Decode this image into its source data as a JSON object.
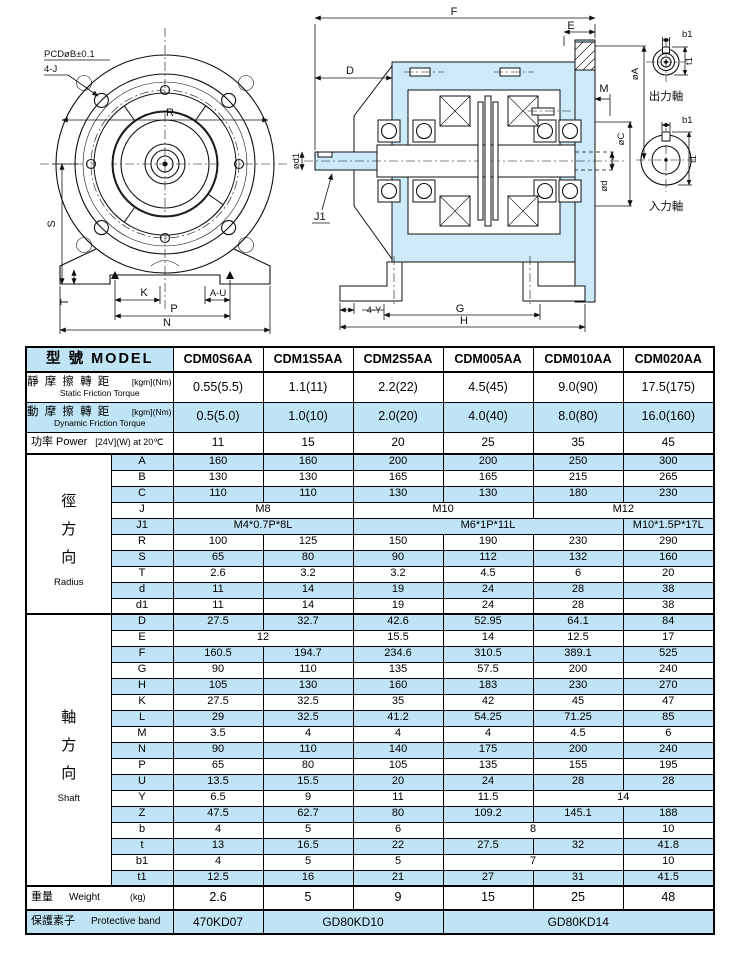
{
  "colors": {
    "shade_blue": "#bfe4f5",
    "drawing_fill": "#cdeaf8",
    "line": "#111111"
  },
  "drawings": {
    "front": {
      "labels": {
        "pcd": "PCDøB±0.1",
        "fourj": "4-J",
        "r": "R",
        "s": "S",
        "t": "T",
        "k": "K",
        "au": "A-U",
        "p": "P",
        "n": "N"
      }
    },
    "section": {
      "labels": {
        "f": "F",
        "e": "E",
        "d": "D",
        "od1": "ød1",
        "j1": "J1",
        "oa": "øA",
        "m": "M",
        "oc": "øC",
        "od": "ød",
        "foury": "4-Y",
        "g": "G",
        "h": "H"
      }
    },
    "shafts": {
      "output": {
        "title": "出力軸",
        "b1": "b1",
        "t1": "t1"
      },
      "input": {
        "title": "入力軸",
        "b1": "b1",
        "t1": "t1"
      }
    }
  },
  "table": {
    "header": {
      "model_label": "型 號 MODEL",
      "models": [
        "CDM0S6AA",
        "CDM1S5AA",
        "CDM2S5AA",
        "CDM005AA",
        "CDM010AA",
        "CDM020AA"
      ]
    },
    "spec_rows": [
      {
        "zh": "靜 摩 擦 轉 距",
        "en": "Static Friction Torque",
        "unit": "[kgm](Nm)",
        "shade": false,
        "values": [
          "0.55(5.5)",
          "1.1(11)",
          "2.2(22)",
          "4.5(45)",
          "9.0(90)",
          "17.5(175)"
        ]
      },
      {
        "zh": "動 摩 擦 轉 距",
        "en": "Dynamic Friction Torque",
        "unit": "[kgm](Nm)",
        "shade": true,
        "values": [
          "0.5(5.0)",
          "1.0(10)",
          "2.0(20)",
          "4.0(40)",
          "8.0(80)",
          "16.0(160)"
        ]
      }
    ],
    "power_row": {
      "zh": "功率 Power",
      "unit": "[24V](W) at 20℃",
      "values": [
        "11",
        "15",
        "20",
        "25",
        "35",
        "45"
      ]
    },
    "dim_groups": [
      {
        "zh": [
          "徑",
          "方",
          "向"
        ],
        "en": "Radius",
        "rows": [
          {
            "label": "A",
            "shade": true,
            "cells": [
              [
                "160"
              ],
              [
                "160"
              ],
              [
                "200"
              ],
              [
                "200"
              ],
              [
                "250"
              ],
              [
                "300"
              ]
            ]
          },
          {
            "label": "B",
            "shade": false,
            "cells": [
              [
                "130"
              ],
              [
                "130"
              ],
              [
                "165"
              ],
              [
                "165"
              ],
              [
                "215"
              ],
              [
                "265"
              ]
            ]
          },
          {
            "label": "C",
            "shade": true,
            "cells": [
              [
                "110"
              ],
              [
                "110"
              ],
              [
                "130"
              ],
              [
                "130"
              ],
              [
                "180"
              ],
              [
                "230"
              ]
            ]
          },
          {
            "label": "J",
            "shade": false,
            "cells": [
              [
                "M8",
                2
              ],
              [
                "M10",
                2
              ],
              [
                "M12",
                2
              ]
            ]
          },
          {
            "label": "J1",
            "shade": true,
            "cells": [
              [
                "M4*0.7P*8L",
                2
              ],
              [
                "M6*1P*11L",
                3
              ],
              [
                "M10*1.5P*17L",
                1
              ]
            ]
          },
          {
            "label": "R",
            "shade": false,
            "cells": [
              [
                "100"
              ],
              [
                "125"
              ],
              [
                "150"
              ],
              [
                "190"
              ],
              [
                "230"
              ],
              [
                "290"
              ]
            ]
          },
          {
            "label": "S",
            "shade": true,
            "cells": [
              [
                "65"
              ],
              [
                "80"
              ],
              [
                "90"
              ],
              [
                "112"
              ],
              [
                "132"
              ],
              [
                "160"
              ]
            ]
          },
          {
            "label": "T",
            "shade": false,
            "cells": [
              [
                "2.6"
              ],
              [
                "3.2"
              ],
              [
                "3.2"
              ],
              [
                "4.5"
              ],
              [
                "6"
              ],
              [
                "20"
              ]
            ]
          },
          {
            "label": "d",
            "shade": true,
            "cells": [
              [
                "11"
              ],
              [
                "14"
              ],
              [
                "19"
              ],
              [
                "24"
              ],
              [
                "28"
              ],
              [
                "38"
              ]
            ]
          },
          {
            "label": "d1",
            "shade": false,
            "cells": [
              [
                "11"
              ],
              [
                "14"
              ],
              [
                "19"
              ],
              [
                "24"
              ],
              [
                "28"
              ],
              [
                "38"
              ]
            ]
          }
        ]
      },
      {
        "zh": [
          "軸",
          "方",
          "向"
        ],
        "en": "Shaft",
        "rows": [
          {
            "label": "D",
            "shade": true,
            "cells": [
              [
                "27.5"
              ],
              [
                "32.7"
              ],
              [
                "42.6"
              ],
              [
                "52.95"
              ],
              [
                "64.1"
              ],
              [
                "84"
              ]
            ]
          },
          {
            "label": "E",
            "shade": false,
            "cells": [
              [
                "12",
                2
              ],
              [
                "15.5"
              ],
              [
                "14"
              ],
              [
                "12.5"
              ],
              [
                "17"
              ]
            ]
          },
          {
            "label": "F",
            "shade": true,
            "cells": [
              [
                "160.5"
              ],
              [
                "194.7"
              ],
              [
                "234.6"
              ],
              [
                "310.5"
              ],
              [
                "389.1"
              ],
              [
                "525"
              ]
            ]
          },
          {
            "label": "G",
            "shade": false,
            "cells": [
              [
                "90"
              ],
              [
                "110"
              ],
              [
                "135"
              ],
              [
                "57.5"
              ],
              [
                "200"
              ],
              [
                "240"
              ]
            ]
          },
          {
            "label": "H",
            "shade": true,
            "cells": [
              [
                "105"
              ],
              [
                "130"
              ],
              [
                "160"
              ],
              [
                "183"
              ],
              [
                "230"
              ],
              [
                "270"
              ]
            ]
          },
          {
            "label": "K",
            "shade": false,
            "cells": [
              [
                "27.5"
              ],
              [
                "32.5"
              ],
              [
                "35"
              ],
              [
                "42"
              ],
              [
                "45"
              ],
              [
                "47"
              ]
            ]
          },
          {
            "label": "L",
            "shade": true,
            "cells": [
              [
                "29"
              ],
              [
                "32.5"
              ],
              [
                "41.2"
              ],
              [
                "54.25"
              ],
              [
                "71.25"
              ],
              [
                "85"
              ]
            ]
          },
          {
            "label": "M",
            "shade": false,
            "cells": [
              [
                "3.5"
              ],
              [
                "4"
              ],
              [
                "4"
              ],
              [
                "4"
              ],
              [
                "4.5"
              ],
              [
                "6"
              ]
            ]
          },
          {
            "label": "N",
            "shade": true,
            "cells": [
              [
                "90"
              ],
              [
                "110"
              ],
              [
                "140"
              ],
              [
                "175"
              ],
              [
                "200"
              ],
              [
                "240"
              ]
            ]
          },
          {
            "label": "P",
            "shade": false,
            "cells": [
              [
                "65"
              ],
              [
                "80"
              ],
              [
                "105"
              ],
              [
                "135"
              ],
              [
                "155"
              ],
              [
                "195"
              ]
            ]
          },
          {
            "label": "U",
            "shade": true,
            "cells": [
              [
                "13.5"
              ],
              [
                "15.5"
              ],
              [
                "20"
              ],
              [
                "24"
              ],
              [
                "28"
              ],
              [
                "28"
              ]
            ]
          },
          {
            "label": "Y",
            "shade": false,
            "cells": [
              [
                "6.5"
              ],
              [
                "9"
              ],
              [
                "11"
              ],
              [
                "11.5"
              ],
              [
                "14",
                2
              ]
            ]
          },
          {
            "label": "Z",
            "shade": true,
            "cells": [
              [
                "47.5"
              ],
              [
                "62.7"
              ],
              [
                "80"
              ],
              [
                "109.2"
              ],
              [
                "145.1"
              ],
              [
                "188"
              ]
            ]
          },
          {
            "label": "b",
            "shade": false,
            "cells": [
              [
                "4"
              ],
              [
                "5"
              ],
              [
                "6"
              ],
              [
                "8",
                2
              ],
              [
                "10"
              ]
            ]
          },
          {
            "label": "t",
            "shade": true,
            "cells": [
              [
                "13"
              ],
              [
                "16.5"
              ],
              [
                "22"
              ],
              [
                "27.5"
              ],
              [
                "32"
              ],
              [
                "41.8"
              ]
            ]
          },
          {
            "label": "b1",
            "shade": false,
            "cells": [
              [
                "4"
              ],
              [
                "5"
              ],
              [
                "5"
              ],
              [
                "7",
                2
              ],
              [
                "10"
              ]
            ]
          },
          {
            "label": "t1",
            "shade": true,
            "cells": [
              [
                "12.5"
              ],
              [
                "16"
              ],
              [
                "21"
              ],
              [
                "27"
              ],
              [
                "31"
              ],
              [
                "41.5"
              ]
            ]
          }
        ]
      }
    ],
    "weight_row": {
      "zh": "重量",
      "en": "Weight",
      "unit": "(kg)",
      "shade": false,
      "cells": [
        [
          "2.6"
        ],
        [
          "5"
        ],
        [
          "9"
        ],
        [
          "15"
        ],
        [
          "25"
        ],
        [
          "48"
        ]
      ]
    },
    "protective_row": {
      "zh": "保護素子",
      "en": "Protective band",
      "shade": true,
      "cells": [
        [
          "470KD07",
          1
        ],
        [
          "GD80KD10",
          2
        ],
        [
          "GD80KD14",
          3
        ]
      ]
    }
  }
}
